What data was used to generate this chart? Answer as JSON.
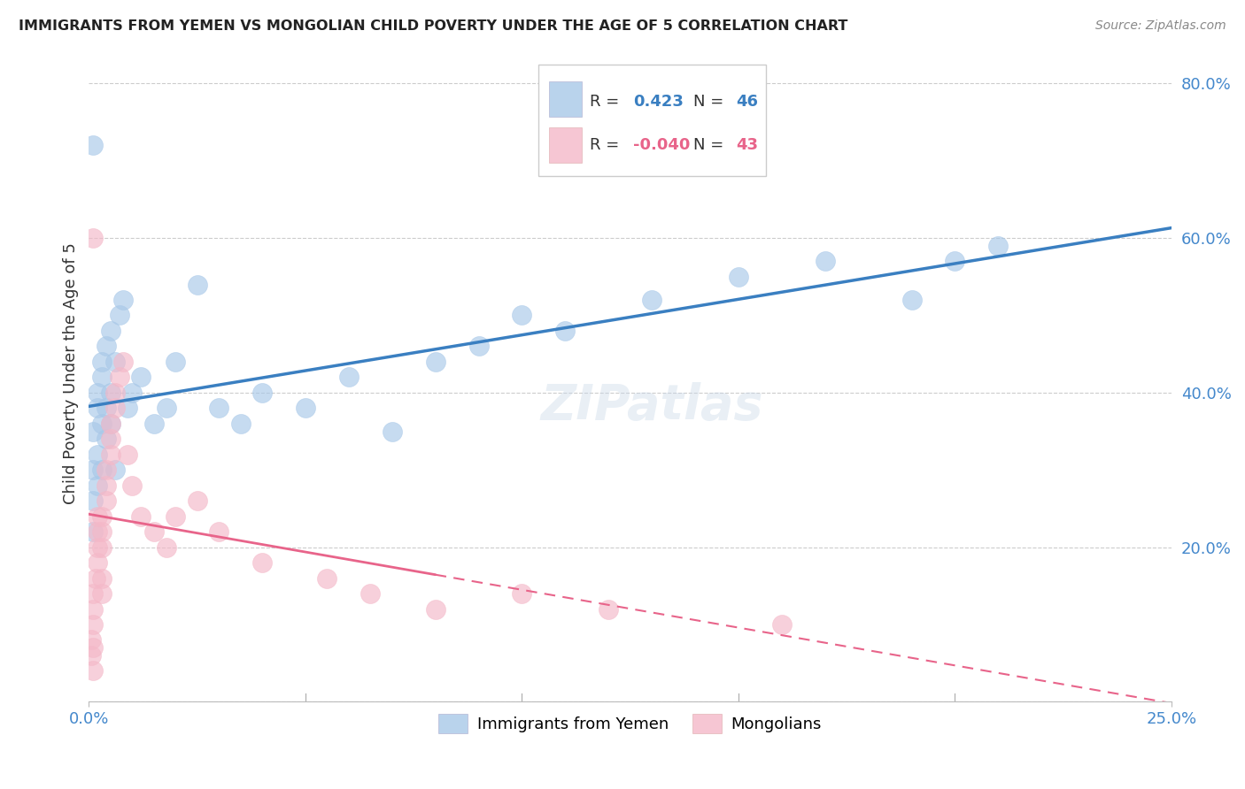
{
  "title": "IMMIGRANTS FROM YEMEN VS MONGOLIAN CHILD POVERTY UNDER THE AGE OF 5 CORRELATION CHART",
  "source": "Source: ZipAtlas.com",
  "ylabel": "Child Poverty Under the Age of 5",
  "yticks": [
    0.0,
    0.2,
    0.4,
    0.6,
    0.8
  ],
  "ytick_labels": [
    "",
    "20.0%",
    "40.0%",
    "60.0%",
    "80.0%"
  ],
  "xlim": [
    0.0,
    0.25
  ],
  "ylim": [
    0.0,
    0.85
  ],
  "blue_R": "0.423",
  "blue_N": "46",
  "pink_R": "-0.040",
  "pink_N": "43",
  "blue_color": "#a8c8e8",
  "pink_color": "#f4b8c8",
  "blue_line_color": "#3a7fc1",
  "pink_line_color": "#e8648a",
  "legend_label_blue": "Immigrants from Yemen",
  "legend_label_pink": "Mongolians",
  "blue_scatter_x": [
    0.001,
    0.001,
    0.001,
    0.001,
    0.002,
    0.002,
    0.002,
    0.002,
    0.003,
    0.003,
    0.003,
    0.003,
    0.004,
    0.004,
    0.004,
    0.005,
    0.005,
    0.005,
    0.006,
    0.006,
    0.007,
    0.008,
    0.009,
    0.01,
    0.012,
    0.015,
    0.018,
    0.02,
    0.025,
    0.03,
    0.035,
    0.04,
    0.05,
    0.06,
    0.07,
    0.08,
    0.09,
    0.1,
    0.11,
    0.13,
    0.15,
    0.17,
    0.19,
    0.2,
    0.21,
    0.001
  ],
  "blue_scatter_y": [
    0.26,
    0.3,
    0.22,
    0.35,
    0.38,
    0.4,
    0.28,
    0.32,
    0.36,
    0.42,
    0.44,
    0.3,
    0.46,
    0.34,
    0.38,
    0.48,
    0.4,
    0.36,
    0.44,
    0.3,
    0.5,
    0.52,
    0.38,
    0.4,
    0.42,
    0.36,
    0.38,
    0.44,
    0.54,
    0.38,
    0.36,
    0.4,
    0.38,
    0.42,
    0.35,
    0.44,
    0.46,
    0.5,
    0.48,
    0.52,
    0.55,
    0.57,
    0.52,
    0.57,
    0.59,
    0.72
  ],
  "pink_scatter_x": [
    0.0005,
    0.0005,
    0.001,
    0.001,
    0.001,
    0.001,
    0.001,
    0.0015,
    0.002,
    0.002,
    0.002,
    0.002,
    0.003,
    0.003,
    0.003,
    0.003,
    0.003,
    0.004,
    0.004,
    0.004,
    0.005,
    0.005,
    0.005,
    0.006,
    0.006,
    0.007,
    0.008,
    0.009,
    0.01,
    0.012,
    0.015,
    0.018,
    0.02,
    0.025,
    0.03,
    0.04,
    0.055,
    0.065,
    0.08,
    0.1,
    0.12,
    0.16,
    0.001
  ],
  "pink_scatter_y": [
    0.06,
    0.08,
    0.1,
    0.12,
    0.14,
    0.04,
    0.07,
    0.16,
    0.18,
    0.2,
    0.22,
    0.24,
    0.14,
    0.16,
    0.2,
    0.22,
    0.24,
    0.26,
    0.28,
    0.3,
    0.32,
    0.34,
    0.36,
    0.38,
    0.4,
    0.42,
    0.44,
    0.32,
    0.28,
    0.24,
    0.22,
    0.2,
    0.24,
    0.26,
    0.22,
    0.18,
    0.16,
    0.14,
    0.12,
    0.14,
    0.12,
    0.1,
    0.6
  ],
  "background_color": "#ffffff",
  "grid_color": "#cccccc",
  "title_color": "#222222",
  "tick_label_color": "#4488cc"
}
